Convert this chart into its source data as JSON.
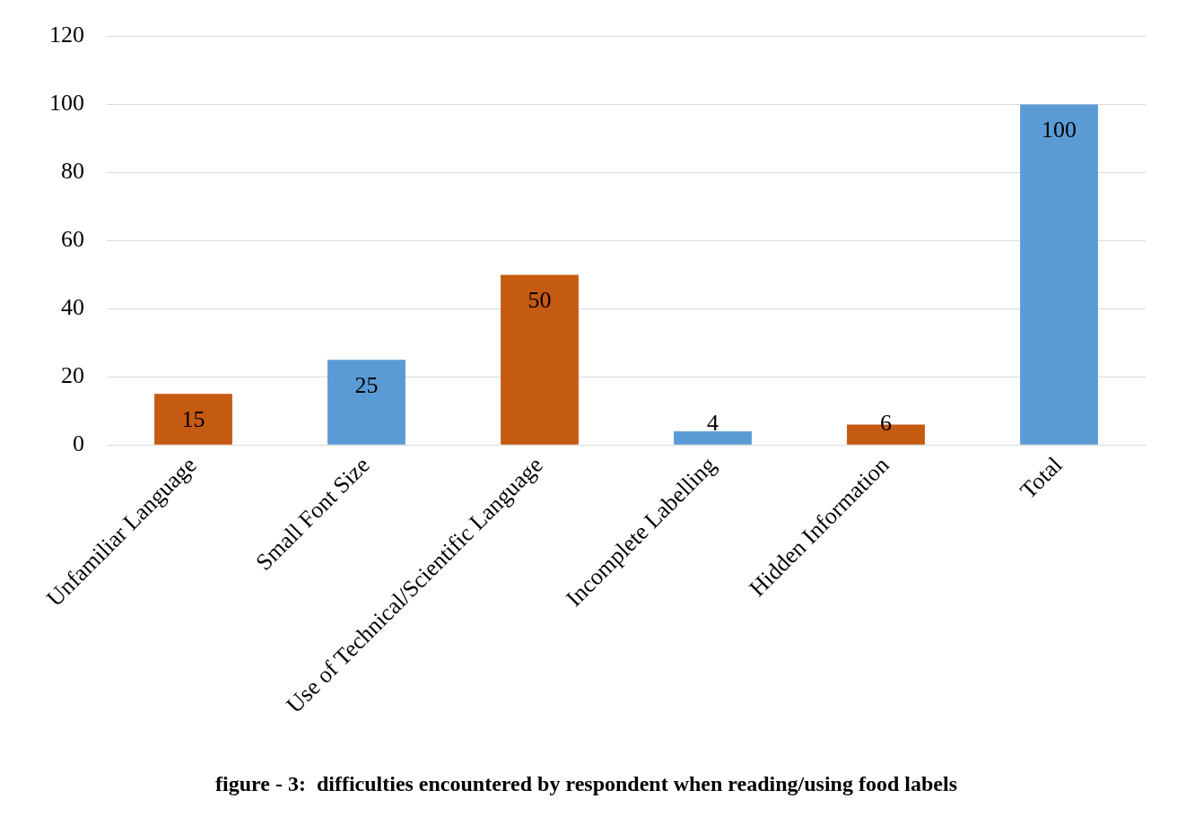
{
  "chart_data": {
    "type": "bar",
    "title": "figure - 3:  difficulties encountered by respondent when reading/using food labels",
    "categories": [
      "Unfamiliar Language",
      "Small Font Size",
      "Use of Technical/Scientific Language",
      "Incomplete Labelling",
      "Hidden Information",
      "Total"
    ],
    "values": [
      15,
      25,
      50,
      4,
      6,
      100
    ],
    "colors": [
      "#c55a11",
      "#5b9bd5",
      "#c55a11",
      "#5b9bd5",
      "#c55a11",
      "#5b9bd5"
    ],
    "ylim": [
      0,
      120
    ],
    "yticks": [
      0,
      20,
      40,
      60,
      80,
      100,
      120
    ],
    "grid": "y",
    "data_labels": true
  }
}
